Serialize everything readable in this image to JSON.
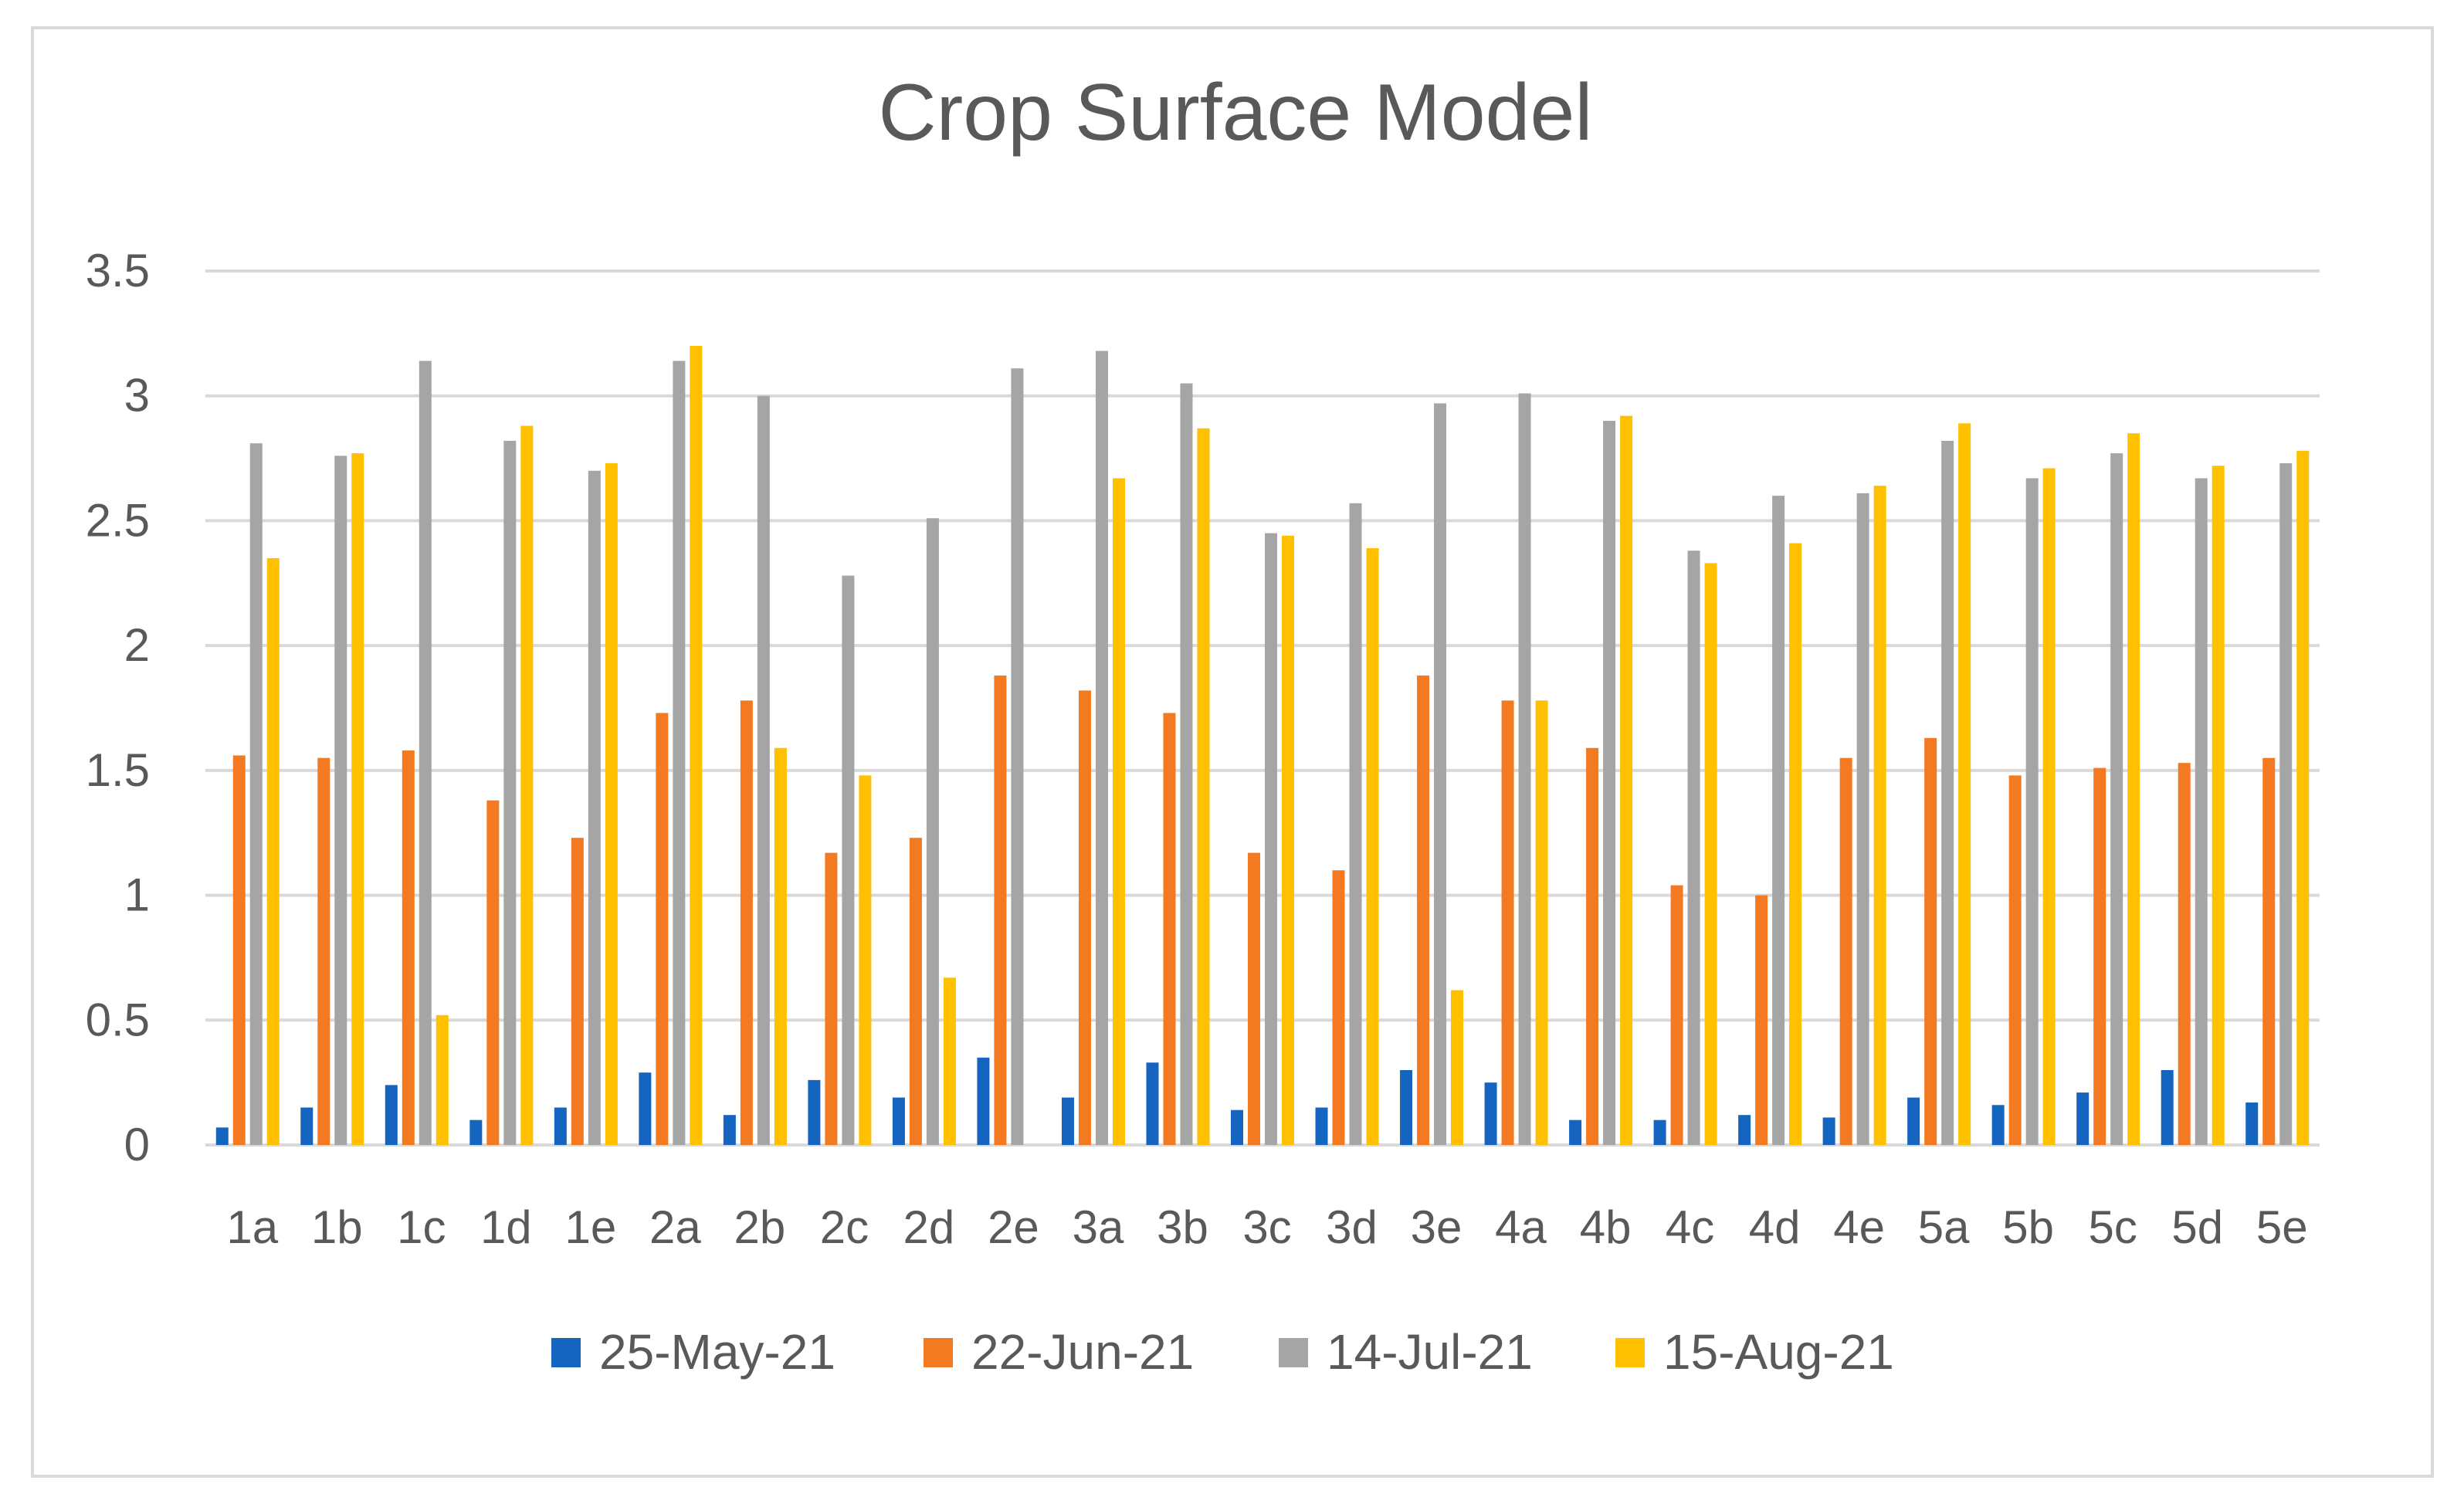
{
  "chart_data": {
    "type": "bar",
    "title": "Crop Surface Model",
    "xlabel": "",
    "ylabel": "",
    "ylim": [
      0,
      3.5
    ],
    "yticks": [
      0,
      0.5,
      1,
      1.5,
      2,
      2.5,
      3,
      3.5
    ],
    "ytick_labels": [
      "0",
      "0.5",
      "1",
      "1.5",
      "2",
      "2.5",
      "3",
      "3.5"
    ],
    "grid": true,
    "legend_position": "bottom",
    "categories": [
      "1a",
      "1b",
      "1c",
      "1d",
      "1e",
      "2a",
      "2b",
      "2c",
      "2d",
      "2e",
      "3a",
      "3b",
      "3c",
      "3d",
      "3e",
      "4a",
      "4b",
      "4c",
      "4d",
      "4e",
      "5a",
      "5b",
      "5c",
      "5d",
      "5e"
    ],
    "series": [
      {
        "name": "25-May-21",
        "color": "#1565c0",
        "values": [
          0.07,
          0.15,
          0.24,
          0.1,
          0.15,
          0.29,
          0.12,
          0.26,
          0.19,
          0.35,
          0.19,
          0.33,
          0.14,
          0.15,
          0.3,
          0.25,
          0.1,
          0.1,
          0.12,
          0.11,
          0.19,
          0.16,
          0.21,
          0.3,
          0.17
        ]
      },
      {
        "name": "22-Jun-21",
        "color": "#f47a22",
        "values": [
          1.56,
          1.55,
          1.58,
          1.38,
          1.23,
          1.73,
          1.78,
          1.17,
          1.23,
          1.88,
          1.82,
          1.73,
          1.17,
          1.1,
          1.88,
          1.78,
          1.59,
          1.04,
          1.0,
          1.55,
          1.63,
          1.48,
          1.51,
          1.53,
          1.55
        ]
      },
      {
        "name": "14-Jul-21",
        "color": "#a5a5a5",
        "values": [
          2.81,
          2.76,
          3.14,
          2.82,
          2.7,
          3.14,
          3.0,
          2.28,
          2.51,
          3.11,
          3.18,
          3.05,
          2.45,
          2.57,
          2.97,
          3.01,
          2.9,
          2.38,
          2.6,
          2.61,
          2.82,
          2.67,
          2.77,
          2.67,
          2.73
        ]
      },
      {
        "name": "15-Aug-21",
        "color": "#ffc000",
        "values": [
          2.35,
          2.77,
          0.52,
          2.88,
          2.73,
          3.2,
          1.59,
          1.48,
          0.67,
          0.0,
          2.67,
          2.87,
          2.44,
          2.39,
          0.62,
          1.78,
          2.92,
          2.33,
          2.41,
          2.64,
          2.89,
          2.71,
          2.85,
          2.72,
          2.78
        ]
      }
    ]
  }
}
